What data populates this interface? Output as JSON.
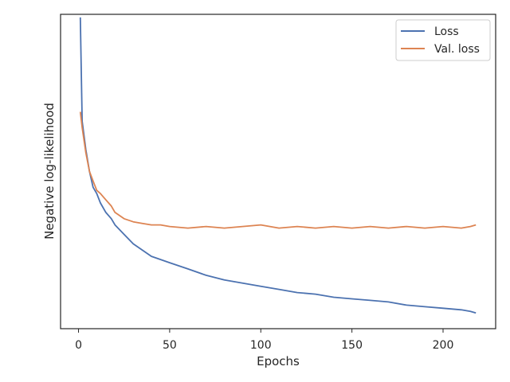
{
  "chart_data": {
    "type": "line",
    "title": "",
    "xlabel": "Epochs",
    "ylabel": "Negative log-likelihood",
    "xlim": [
      -9.85,
      228.85
    ],
    "ylim": [
      0,
      1
    ],
    "x_ticks": [
      0,
      50,
      100,
      150,
      200
    ],
    "y_ticks": [],
    "y_tick_labels_shown": false,
    "grid": false,
    "legend": {
      "position": "top-right"
    },
    "series": [
      {
        "name": "Loss",
        "color": "#4c72b0",
        "x": [
          1,
          2,
          4,
          6,
          8,
          10,
          12,
          15,
          18,
          20,
          25,
          30,
          35,
          40,
          45,
          50,
          60,
          70,
          80,
          90,
          100,
          110,
          120,
          130,
          140,
          150,
          160,
          170,
          180,
          190,
          200,
          210,
          215,
          218
        ],
        "y": [
          0.99,
          0.66,
          0.57,
          0.5,
          0.45,
          0.43,
          0.4,
          0.37,
          0.35,
          0.33,
          0.3,
          0.27,
          0.25,
          0.23,
          0.22,
          0.21,
          0.19,
          0.17,
          0.155,
          0.145,
          0.135,
          0.125,
          0.115,
          0.11,
          0.1,
          0.095,
          0.09,
          0.085,
          0.075,
          0.07,
          0.065,
          0.06,
          0.055,
          0.05
        ]
      },
      {
        "name": "Val. loss",
        "color": "#dd8452",
        "x": [
          1,
          2,
          4,
          6,
          8,
          10,
          12,
          15,
          18,
          20,
          25,
          30,
          35,
          40,
          45,
          50,
          60,
          70,
          80,
          90,
          100,
          110,
          120,
          130,
          140,
          150,
          160,
          170,
          180,
          190,
          200,
          210,
          215,
          218
        ],
        "y": [
          0.69,
          0.64,
          0.56,
          0.5,
          0.47,
          0.44,
          0.43,
          0.41,
          0.39,
          0.37,
          0.35,
          0.34,
          0.335,
          0.33,
          0.33,
          0.325,
          0.32,
          0.325,
          0.32,
          0.325,
          0.33,
          0.32,
          0.325,
          0.32,
          0.325,
          0.32,
          0.325,
          0.32,
          0.325,
          0.32,
          0.325,
          0.32,
          0.325,
          0.33
        ]
      }
    ]
  }
}
